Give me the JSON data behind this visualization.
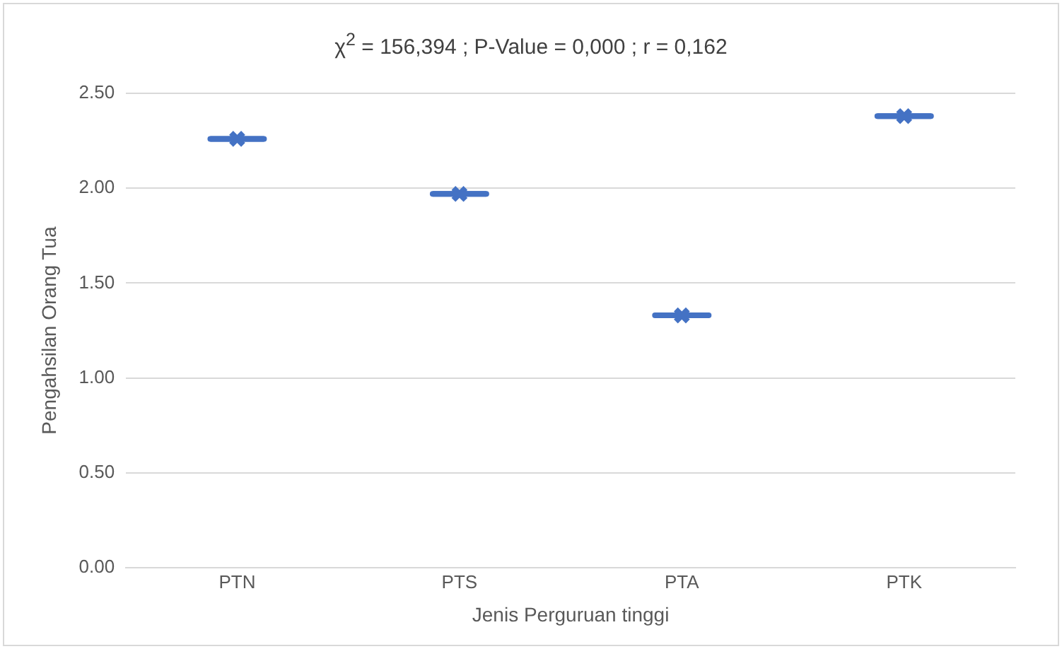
{
  "chart_data": {
    "type": "box",
    "title": "χ$^{2}$ = 156,394 ;  P-Value = 0,000 ; r = 0,162",
    "xlabel": "Jenis Perguruan tinggi",
    "ylabel": "Pengahsilan Orang Tua",
    "categories": [
      "PTN",
      "PTS",
      "PTA",
      "PTK"
    ],
    "series": [
      {
        "color": "#4472c4",
        "boxes": [
          {
            "low": 2.26,
            "q1": 2.26,
            "median": 2.26,
            "q3": 2.26,
            "high": 2.26,
            "mean": 2.26
          },
          {
            "low": 1.97,
            "q1": 1.97,
            "median": 1.97,
            "q3": 1.97,
            "high": 1.97,
            "mean": 1.97
          },
          {
            "low": 1.33,
            "q1": 1.33,
            "median": 1.33,
            "q3": 1.33,
            "high": 1.33,
            "mean": 1.33
          },
          {
            "low": 2.38,
            "q1": 2.38,
            "median": 2.38,
            "q3": 2.38,
            "high": 2.38,
            "mean": 2.38
          }
        ]
      }
    ],
    "ylim": [
      0,
      2.5
    ],
    "yticks": [
      {
        "value": 0,
        "label": "0.00"
      },
      {
        "value": 0.5,
        "label": "0.50"
      },
      {
        "value": 1,
        "label": "1.00"
      },
      {
        "value": 1.5,
        "label": "1.50"
      },
      {
        "value": 2,
        "label": "2.00"
      },
      {
        "value": 2.5,
        "label": "2.50"
      }
    ],
    "grid": "y",
    "legend": false,
    "marker": "cross"
  }
}
